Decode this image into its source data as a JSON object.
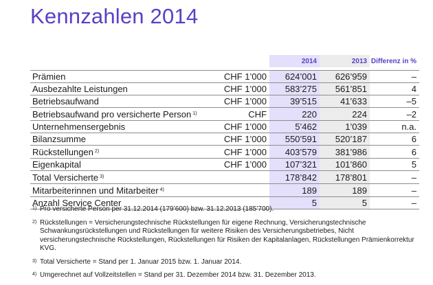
{
  "title": "Kennzahlen 2014",
  "headers": {
    "y2014": "2014",
    "y2013": "2013",
    "diff": "Differenz in %"
  },
  "rows": [
    {
      "label": "Prämien",
      "note": "",
      "unit": "CHF 1’000",
      "v2014": "624’001",
      "v2013": "626’959",
      "diff": "–"
    },
    {
      "label": "Ausbezahlte Leistungen",
      "note": "",
      "unit": "CHF 1’000",
      "v2014": "583’275",
      "v2013": "561’851",
      "diff": "4"
    },
    {
      "label": "Betriebsaufwand",
      "note": "",
      "unit": "CHF 1’000",
      "v2014": "39’515",
      "v2013": "41’633",
      "diff": "–5"
    },
    {
      "label": "Betriebsaufwand pro versicherte Person",
      "note": "1)",
      "unit": "CHF",
      "v2014": "220",
      "v2013": "224",
      "diff": "–2"
    },
    {
      "label": "Unternehmensergebnis",
      "note": "",
      "unit": "CHF 1’000",
      "v2014": "5’462",
      "v2013": "1’039",
      "diff": "n.a."
    },
    {
      "label": "Bilanzsumme",
      "note": "",
      "unit": "CHF 1’000",
      "v2014": "550’591",
      "v2013": "520’187",
      "diff": "6"
    },
    {
      "label": "Rückstellungen",
      "note": "2)",
      "unit": "CHF 1’000",
      "v2014": "403’579",
      "v2013": "381’986",
      "diff": "6"
    },
    {
      "label": "Eigenkapital",
      "note": "",
      "unit": "CHF 1’000",
      "v2014": "107’321",
      "v2013": "101’860",
      "diff": "5"
    },
    {
      "label": "Total Versicherte",
      "note": "3)",
      "unit": "",
      "v2014": "178’842",
      "v2013": "178’801",
      "diff": "–"
    },
    {
      "label": "Mitarbeiterinnen und Mitarbeiter",
      "note": "4)",
      "unit": "",
      "v2014": "189",
      "v2013": "189",
      "diff": "–"
    },
    {
      "label": "Anzahl Service Center",
      "note": "",
      "unit": "",
      "v2014": "5",
      "v2013": "5",
      "diff": "–"
    }
  ],
  "footnotes": [
    {
      "mark": "1)",
      "text": "Pro versicherte Person per 31.12.2014 (179’600) bzw. 31.12.2013 (185’700)."
    },
    {
      "mark": "2)",
      "text": "Rückstellungen = Versicherungstechnische Rückstellungen für eigene Rechnung, Versicherungstechnische Schwankungsrückstellungen und Rückstellungen für weitere Risiken des Versicherungsbetriebes, Nicht versicherungstechnische Rückstellungen, Rückstellungen für Risiken der Kapitalanlagen, Rückstellungen Prämienkorrektur KVG."
    },
    {
      "mark": "3)",
      "text": "Total Versicherte = Stand per 1. Januar 2015 bzw. 1. Januar 2014."
    },
    {
      "mark": "4)",
      "text": "Umgerechnet auf Vollzeitstellen = Stand per 31. Dezember 2014 bzw. 31. Dezember 2013."
    }
  ],
  "colors": {
    "accent": "#5b3fc4",
    "col2014_bg": "#e4e0fb",
    "col2013_bg": "#ececec"
  }
}
